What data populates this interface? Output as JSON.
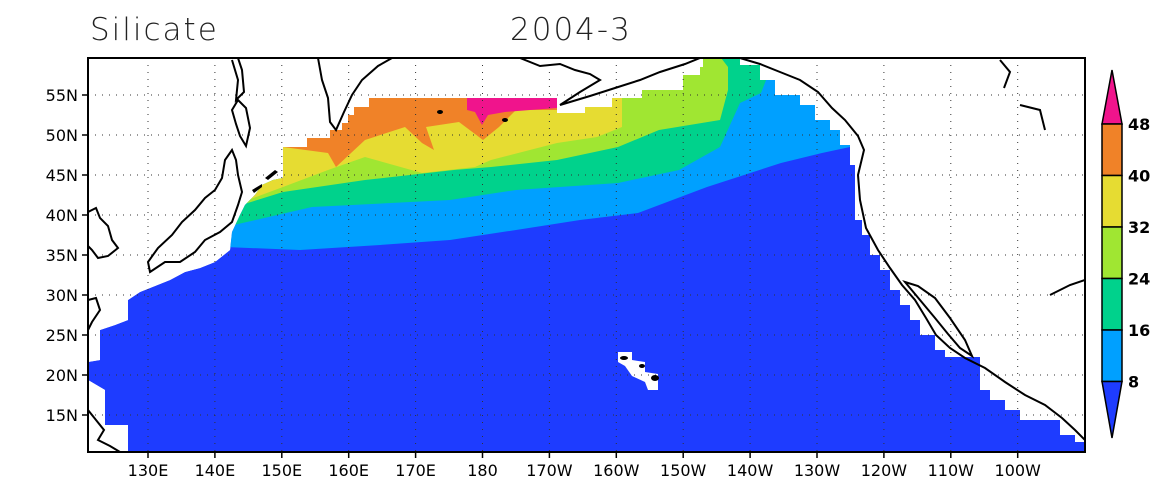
{
  "header": {
    "variable": "Silicate",
    "time": "2004-3"
  },
  "chart_data": {
    "type": "heatmap",
    "subtype": "filled-contour-map",
    "region": "North Pacific",
    "lon_range": [
      "121E",
      "90W"
    ],
    "lat_range": [
      "10N",
      "60N"
    ],
    "x_ticks": [
      "130E",
      "140E",
      "150E",
      "160E",
      "170E",
      "180",
      "170W",
      "160W",
      "150W",
      "140W",
      "130W",
      "120W",
      "110W",
      "100W"
    ],
    "y_ticks": [
      "55N",
      "50N",
      "45N",
      "40N",
      "35N",
      "30N",
      "25N",
      "20N",
      "15N"
    ],
    "grid": true,
    "legend": {
      "placement": "right",
      "levels": [
        "48",
        "40",
        "32",
        "24",
        "16",
        "8"
      ],
      "colors": {
        "above_48": "#f0148c",
        "40_48": "#f08228",
        "32_40": "#e6dc32",
        "24_32": "#a0e632",
        "16_24": "#00d28c",
        "8_16": "#00a0ff",
        "below_8": "#1e3cff"
      }
    }
  }
}
